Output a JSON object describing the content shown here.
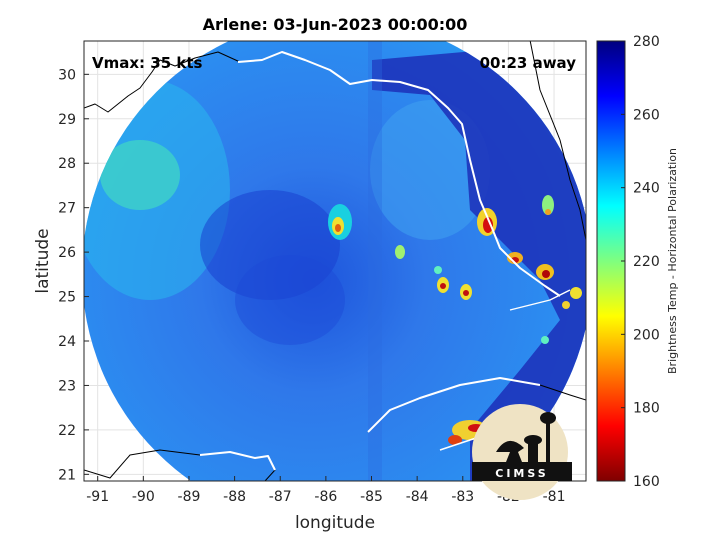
{
  "title": "Arlene: 03-Jun-2023 00:00:00",
  "vmax_text": "Vmax: 35 kts",
  "time_away": "00:23 away",
  "axes": {
    "xlabel": "longitude",
    "ylabel": "latitude",
    "x_ticks": [
      -91,
      -90,
      -89,
      -88,
      -87,
      -86,
      -85,
      -84,
      -83,
      -82,
      -81
    ],
    "y_ticks": [
      21,
      22,
      23,
      24,
      25,
      26,
      27,
      28,
      29,
      30
    ],
    "xlim": [
      -91.3,
      -80.3
    ],
    "ylim": [
      20.85,
      30.75
    ],
    "grid": true
  },
  "colorbar": {
    "label": "Brightness Temp - Horizontal Polarization",
    "ticks": [
      160,
      180,
      200,
      220,
      240,
      260,
      280
    ],
    "range": [
      160,
      280
    ],
    "colormap": "jet"
  },
  "logo": {
    "text": "CIMSS"
  },
  "colors": {
    "ocean_mean": "#2a78e6",
    "land_warm": "#1f3fc8",
    "convection_cold": "#cc1010",
    "coastline": "#ffffff"
  }
}
